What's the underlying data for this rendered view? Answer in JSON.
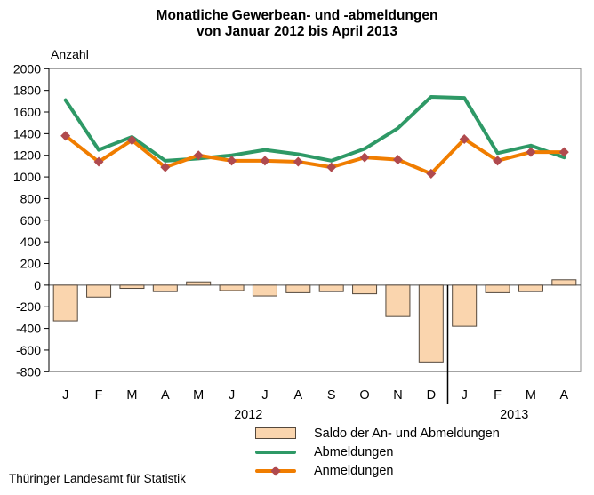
{
  "title": {
    "line1": "Monatliche Gewerbean- und -abmeldungen",
    "line2": "von Januar 2012 bis April 2013"
  },
  "y_axis_title": "Anzahl",
  "source": "Thüringer Landesamt für Statistik",
  "legend": [
    {
      "key": "saldo",
      "label": "Saldo der An- und Abmeldungen"
    },
    {
      "key": "abmeldungen",
      "label": "Abmeldungen"
    },
    {
      "key": "anmeldungen",
      "label": "Anmeldungen"
    }
  ],
  "colors": {
    "abmeldungen_line": "#2e9966",
    "anmeldungen_line": "#f07d00",
    "anmeldungen_marker": "#b04a4e",
    "saldo_fill": "#fad5ae",
    "saldo_border": "#54483c",
    "axis": "#000000",
    "box": "#8c8c8c",
    "zero_line": "#4d4d4d"
  },
  "chart_data": {
    "type": "bar+line combo",
    "title": "Monatliche Gewerbean- und -abmeldungen von Januar 2012 bis April 2013",
    "ylabel": "Anzahl",
    "ylim": [
      -800,
      2000
    ],
    "y_ticks": [
      2000,
      1800,
      1600,
      1400,
      1200,
      1000,
      800,
      600,
      400,
      200,
      0,
      -200,
      -400,
      -600,
      -800
    ],
    "categories": [
      "J",
      "F",
      "M",
      "A",
      "M",
      "J",
      "J",
      "A",
      "S",
      "O",
      "N",
      "D",
      "J",
      "F",
      "M",
      "A"
    ],
    "year_groups": [
      {
        "label": "2012",
        "from": 0,
        "to": 11
      },
      {
        "label": "2013",
        "from": 12,
        "to": 15
      }
    ],
    "series": [
      {
        "name": "Saldo der An- und Abmeldungen",
        "type": "bar",
        "values": [
          -330,
          -110,
          -30,
          -60,
          30,
          -50,
          -100,
          -70,
          -60,
          -80,
          -290,
          -710,
          -380,
          -70,
          -60,
          50
        ]
      },
      {
        "name": "Abmeldungen",
        "type": "line",
        "values": [
          1710,
          1250,
          1370,
          1150,
          1170,
          1200,
          1250,
          1210,
          1150,
          1260,
          1450,
          1740,
          1730,
          1220,
          1290,
          1180
        ]
      },
      {
        "name": "Anmeldungen",
        "type": "line-diamond",
        "values": [
          1380,
          1140,
          1340,
          1090,
          1200,
          1150,
          1150,
          1140,
          1090,
          1180,
          1160,
          1030,
          1350,
          1150,
          1230,
          1230
        ]
      }
    ],
    "legend_position": "bottom",
    "grid": false
  }
}
